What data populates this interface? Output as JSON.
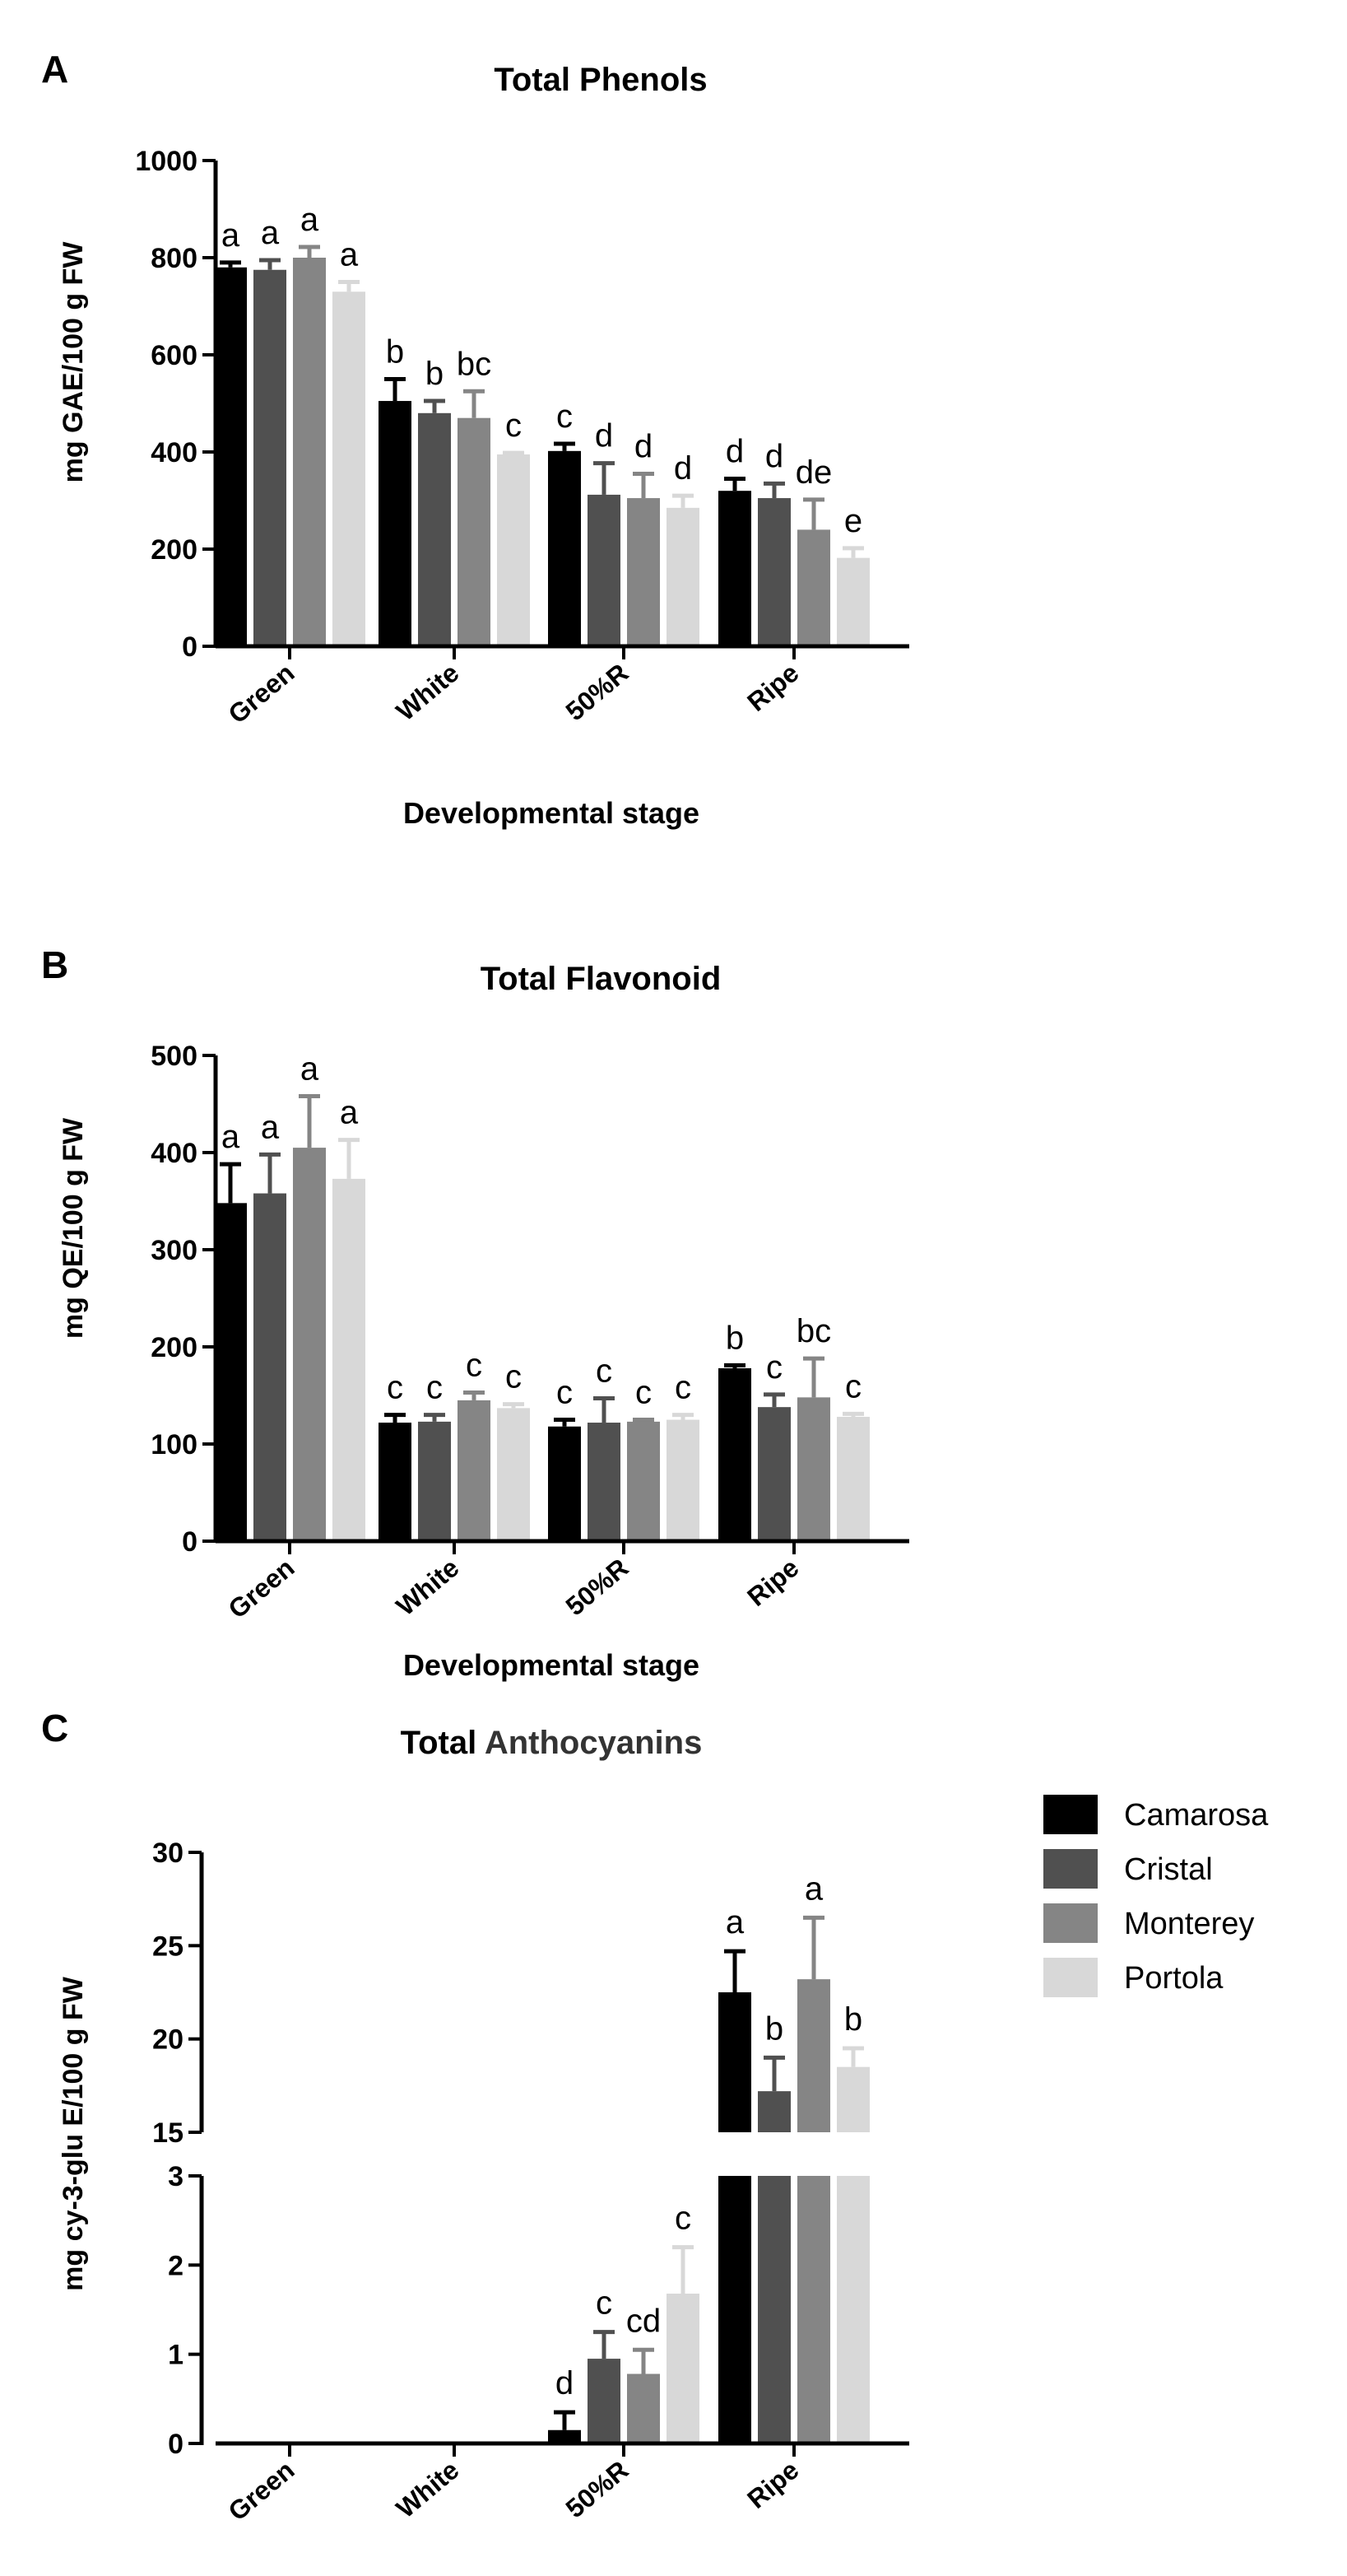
{
  "xlabel": "Developmental stage",
  "categories": [
    "Green",
    "White",
    "50%R",
    "Ripe"
  ],
  "legend": [
    {
      "name": "Camarosa",
      "color": "#000000"
    },
    {
      "name": "Cristal",
      "color": "#505050"
    },
    {
      "name": "Monterey",
      "color": "#858585"
    },
    {
      "name": "Portola",
      "color": "#d8d8d8"
    }
  ],
  "chart_data": [
    {
      "panel": "A",
      "type": "bar",
      "title": "Total Phenols",
      "ylabel": "mg GAE/100 g FW",
      "xlabel": "Developmental stage",
      "categories": [
        "Green",
        "White",
        "50%R",
        "Ripe"
      ],
      "ylim": [
        0,
        1000
      ],
      "yticks": [
        0,
        200,
        400,
        600,
        800,
        1000
      ],
      "series": [
        {
          "name": "Camarosa",
          "values": [
            780,
            505,
            402,
            320
          ],
          "errors": [
            10,
            45,
            15,
            25
          ]
        },
        {
          "name": "Cristal",
          "values": [
            775,
            480,
            312,
            305
          ],
          "errors": [
            20,
            25,
            65,
            30
          ]
        },
        {
          "name": "Monterey",
          "values": [
            800,
            470,
            305,
            240
          ],
          "errors": [
            22,
            55,
            50,
            62
          ]
        },
        {
          "name": "Portola",
          "values": [
            730,
            395,
            285,
            182
          ],
          "errors": [
            20,
            3,
            25,
            20
          ]
        }
      ],
      "labels": [
        [
          "a",
          "a",
          "a",
          "a"
        ],
        [
          "b",
          "b",
          "bc",
          "c"
        ],
        [
          "c",
          "d",
          "d",
          "d"
        ],
        [
          "d",
          "d",
          "de",
          "e"
        ]
      ]
    },
    {
      "panel": "B",
      "type": "bar",
      "title": "Total Flavonoid",
      "ylabel": "mg QE/100 g FW",
      "xlabel": "Developmental stage",
      "categories": [
        "Green",
        "White",
        "50%R",
        "Ripe"
      ],
      "ylim": [
        0,
        500
      ],
      "yticks": [
        0,
        100,
        200,
        300,
        400,
        500
      ],
      "series": [
        {
          "name": "Camarosa",
          "values": [
            348,
            122,
            118,
            178
          ],
          "errors": [
            40,
            8,
            7,
            3
          ]
        },
        {
          "name": "Cristal",
          "values": [
            358,
            123,
            122,
            138
          ],
          "errors": [
            40,
            7,
            25,
            13
          ]
        },
        {
          "name": "Monterey",
          "values": [
            405,
            145,
            123,
            148
          ],
          "errors": [
            53,
            8,
            2,
            40
          ]
        },
        {
          "name": "Portola",
          "values": [
            373,
            137,
            125,
            128
          ],
          "errors": [
            40,
            4,
            5,
            3
          ]
        }
      ],
      "labels": [
        [
          "a",
          "a",
          "a",
          "a"
        ],
        [
          "c",
          "c",
          "c",
          "c"
        ],
        [
          "c",
          "c",
          "c",
          "c"
        ],
        [
          "b",
          "c",
          "bc",
          "c"
        ]
      ]
    },
    {
      "panel": "C",
      "type": "bar",
      "title_prefix": "Total ",
      "title_suffix": "Anthocyanins",
      "ylabel": "mg cy-3-glu E/100 g FW",
      "categories": [
        "Green",
        "White",
        "50%R",
        "Ripe"
      ],
      "axis_break": [
        3,
        15
      ],
      "ylim_lower": [
        0,
        3
      ],
      "ylim_upper": [
        15,
        30
      ],
      "yticks_lower": [
        0,
        1,
        2,
        3
      ],
      "yticks_upper": [
        15,
        20,
        25,
        30
      ],
      "series": [
        {
          "name": "Camarosa",
          "values": [
            0,
            0,
            0.15,
            22.5
          ],
          "errors": [
            0,
            0,
            0.2,
            2.2
          ]
        },
        {
          "name": "Cristal",
          "values": [
            0,
            0,
            0.95,
            17.2
          ],
          "errors": [
            0,
            0,
            0.3,
            1.8
          ]
        },
        {
          "name": "Monterey",
          "values": [
            0,
            0,
            0.78,
            23.2
          ],
          "errors": [
            0,
            0,
            0.27,
            3.3
          ]
        },
        {
          "name": "Portola",
          "values": [
            0,
            0,
            1.68,
            18.5
          ],
          "errors": [
            0,
            0,
            0.52,
            1.0
          ]
        }
      ],
      "labels": [
        [
          "",
          "",
          "",
          ""
        ],
        [
          "",
          "",
          "",
          ""
        ],
        [
          "d",
          "c",
          "cd",
          "c"
        ],
        [
          "a",
          "b",
          "a",
          "b"
        ]
      ]
    }
  ]
}
